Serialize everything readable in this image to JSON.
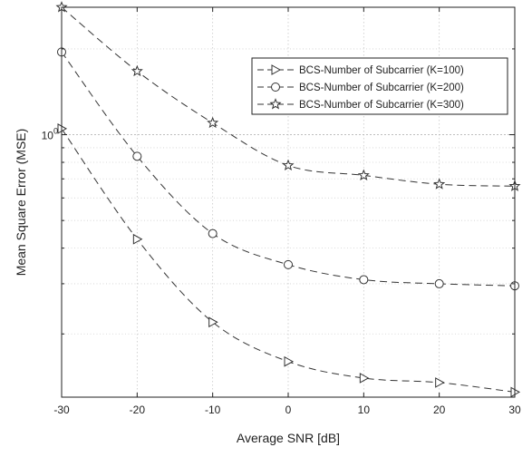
{
  "chart_data": {
    "type": "line",
    "title": "",
    "xlabel": "Average SNR [dB]",
    "ylabel": "Mean Square Error (MSE)",
    "x": [
      -30,
      -20,
      -10,
      0,
      10,
      20,
      30
    ],
    "xlim": [
      -30,
      30
    ],
    "ylim": [
      0.12,
      2.8
    ],
    "yscale": "log",
    "grid": true,
    "legend_position": "top-right",
    "x_ticks": [
      "-30",
      "-20",
      "-10",
      "0",
      "10",
      "20",
      "30"
    ],
    "y_tick_label": {
      "base": "10",
      "exp": "0"
    },
    "series": [
      {
        "name": "BCS-Number of Subcarrier (K=100)",
        "marker": "triangle-right",
        "color": "#333333",
        "values": [
          1.05,
          0.43,
          0.22,
          0.16,
          0.14,
          0.135,
          0.125
        ]
      },
      {
        "name": "BCS-Number of Subcarrier (K=200)",
        "marker": "circle",
        "color": "#333333",
        "values": [
          1.95,
          0.84,
          0.45,
          0.35,
          0.31,
          0.3,
          0.295
        ]
      },
      {
        "name": "BCS-Number of Subcarrier (K=300)",
        "marker": "star",
        "color": "#333333",
        "values": [
          2.8,
          1.67,
          1.1,
          0.78,
          0.72,
          0.67,
          0.66
        ]
      }
    ]
  }
}
